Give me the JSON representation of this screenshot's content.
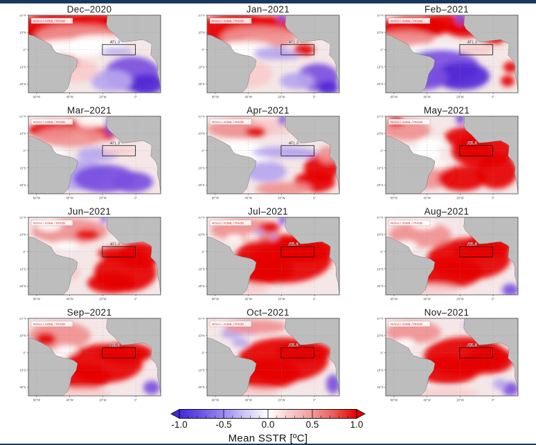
{
  "page": {
    "top_border_color": "#17375e",
    "bottom_border_color": "#17375e",
    "background": "#ffffff"
  },
  "panel_common": {
    "watermark": "NOAA / AOML / PHOD",
    "region_box_label": "ATL 3",
    "lat_ticks": [
      "20°N",
      "10°N",
      "0°",
      "10°S",
      "20°S"
    ],
    "lon_ticks": [
      "60°W",
      "40°W",
      "20°W",
      "0°"
    ]
  },
  "panels": [
    {
      "month": "Dec–2020"
    },
    {
      "month": "Jan–2021"
    },
    {
      "month": "Feb–2021"
    },
    {
      "month": "Mar–2021"
    },
    {
      "month": "Apr–2021"
    },
    {
      "month": "May–2021"
    },
    {
      "month": "Jun–2021"
    },
    {
      "month": "Jul–2021"
    },
    {
      "month": "Aug–2021"
    },
    {
      "month": "Sep–2021"
    },
    {
      "month": "Oct–2021"
    },
    {
      "month": "Nov–2021"
    }
  ],
  "colorbar": {
    "ticks": [
      "-1.0",
      "-0.5",
      "0.0",
      "0.5",
      "1.0"
    ],
    "label": "Mean SSTR [ºC]",
    "negative_color": "#4129d8",
    "zero_color": "#ffffff",
    "positive_color": "#e60000"
  },
  "map_colors": {
    "land": "#bdbdbd",
    "coastline": "#7a7a7a",
    "ocean_base": "#f5e7e7",
    "strong_warm": "#e60000",
    "warm": "#f19191",
    "pale_warm": "#f8cccc",
    "neutral": "#ffffff",
    "cool": "#b7a6ef",
    "strong_cool": "#7b4fe0",
    "deep_cool": "#5229d6"
  }
}
